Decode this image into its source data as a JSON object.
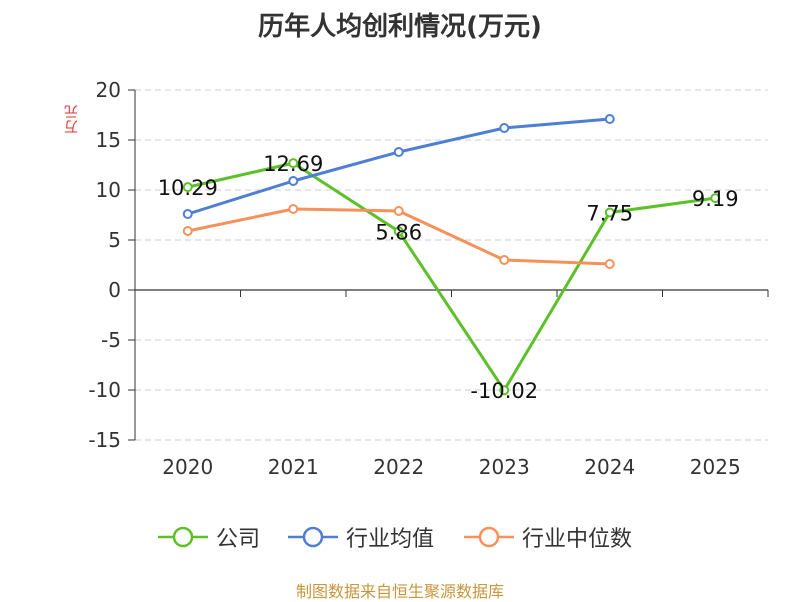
{
  "chart_data": {
    "type": "line",
    "title": "历年人均创利情况(万元)",
    "ylabel": "万元",
    "xlabel": "",
    "categories": [
      "2020",
      "2021",
      "2022",
      "2023",
      "2024",
      "2025"
    ],
    "ylim": [
      -15,
      20
    ],
    "yticks": [
      20,
      15,
      10,
      5,
      0,
      -5,
      -10,
      -15
    ],
    "ytick_labels": [
      "20",
      "15",
      "10",
      "5",
      "0",
      "-5",
      "-10",
      "-15"
    ],
    "grid": true,
    "legend_position": "bottom",
    "series": [
      {
        "name": "公司",
        "color": "#5cc128",
        "values": [
          10.29,
          12.69,
          5.86,
          -10.02,
          7.75,
          9.19
        ],
        "data_labels": [
          "10.29",
          "12.69",
          "5.86",
          "-10.02",
          "7.75",
          "9.19"
        ]
      },
      {
        "name": "行业均值",
        "color": "#4e7fd4",
        "values": [
          7.6,
          10.9,
          13.8,
          16.2,
          17.1,
          null
        ]
      },
      {
        "name": "行业中位数",
        "color": "#f5915a",
        "values": [
          5.9,
          8.1,
          7.9,
          3.0,
          2.6,
          null
        ]
      }
    ]
  },
  "source": "制图数据来自恒生聚源数据库"
}
